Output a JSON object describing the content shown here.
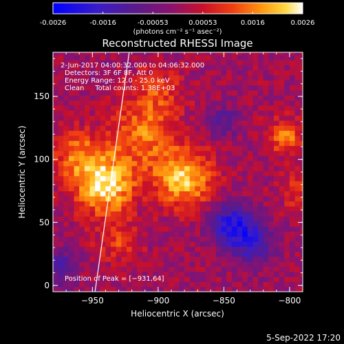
{
  "colorbar": {
    "ticks": [
      "-0.0026",
      "-0.0016",
      "-0.00053",
      "0.00053",
      "0.0016",
      "0.0026"
    ],
    "units_label": "(photons cm⁻² s⁻¹ asec⁻²)",
    "range": [
      -0.0026,
      0.0026
    ]
  },
  "chart_data": {
    "type": "heatmap",
    "title": "Reconstructed RHESSI Image",
    "xlabel": "Heliocentric X (arcsec)",
    "ylabel": "Heliocentric Y (arcsec)",
    "xlim": [
      -980,
      -790
    ],
    "ylim": [
      -5,
      185
    ],
    "x_ticks": [
      {
        "value": -950,
        "label": "−950"
      },
      {
        "value": -900,
        "label": "−900"
      },
      {
        "value": -850,
        "label": "−850"
      },
      {
        "value": -800,
        "label": "−800"
      }
    ],
    "y_ticks": [
      {
        "value": 0,
        "label": "0"
      },
      {
        "value": 50,
        "label": "50"
      },
      {
        "value": 100,
        "label": "100"
      },
      {
        "value": 150,
        "label": "150"
      }
    ],
    "annotations": [
      "2-Jun-2017 04:00:32.000 to 04:06:32.000",
      "Detectors: 3F 6F 8F, Att 0",
      "Energy Range: 12.0 - 25.0 keV",
      "Clean     Total counts: 1.38E+03"
    ],
    "peak_label": "Position of Peak = [−931,64]",
    "peak_position": [
      -931,
      64
    ],
    "limb_line": [
      [
        -948,
        -5
      ],
      [
        -922,
        185
      ]
    ],
    "grid": false,
    "sources": [
      {
        "x": -941,
        "y": 80,
        "sigma": 16,
        "amp": 0.95
      },
      {
        "x": -962,
        "y": 105,
        "sigma": 13,
        "amp": 0.5
      },
      {
        "x": -912,
        "y": 120,
        "sigma": 18,
        "amp": 0.55
      },
      {
        "x": -880,
        "y": 85,
        "sigma": 16,
        "amp": 0.8
      },
      {
        "x": -900,
        "y": 155,
        "sigma": 14,
        "amp": 0.35
      },
      {
        "x": -930,
        "y": 35,
        "sigma": 12,
        "amp": 0.35
      },
      {
        "x": -803,
        "y": 118,
        "sigma": 10,
        "amp": 0.55
      },
      {
        "x": -795,
        "y": 75,
        "sigma": 10,
        "amp": 0.3
      }
    ],
    "negative_regions": [
      {
        "x": -845,
        "y": 50,
        "sigma": 12,
        "amp": -0.7
      },
      {
        "x": -830,
        "y": 35,
        "sigma": 12,
        "amp": -0.6
      },
      {
        "x": -975,
        "y": 15,
        "sigma": 10,
        "amp": -0.5
      },
      {
        "x": -850,
        "y": 130,
        "sigma": 8,
        "amp": -0.4
      }
    ]
  },
  "footer_timestamp": "5-Sep-2022 17:20"
}
